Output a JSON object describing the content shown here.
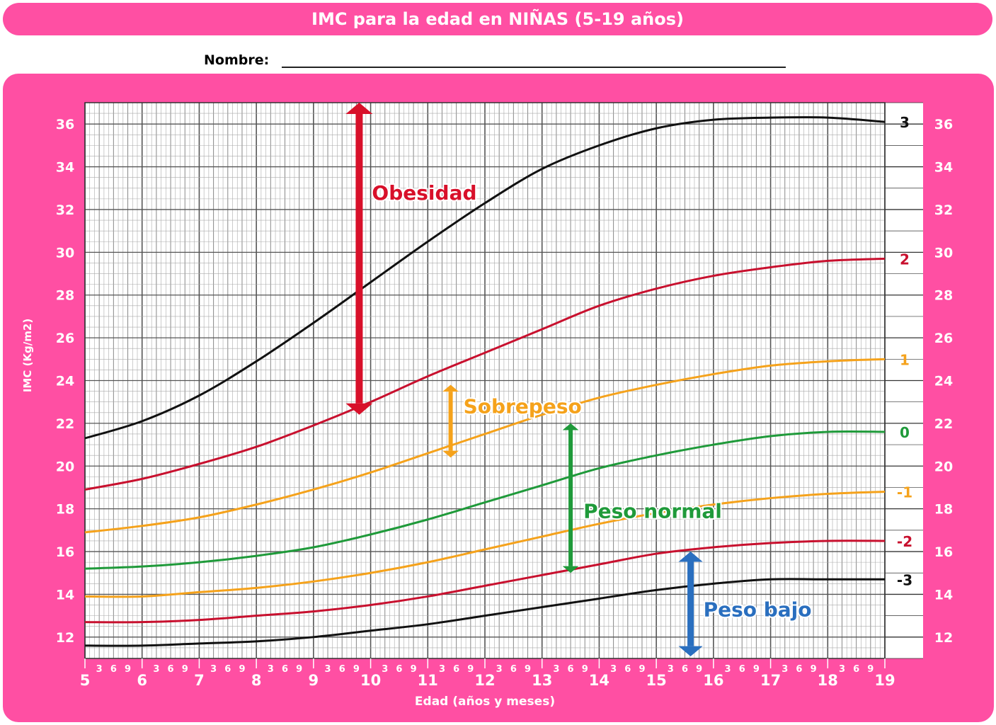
{
  "header": {
    "title": "IMC para la edad en NIÑAS (5-19 años)",
    "name_label": "Nombre:"
  },
  "colors": {
    "background_panel": "#ff4fa3",
    "sd_3": "#111111",
    "sd_2": "#c8102e",
    "sd_1": "#f5a21b",
    "sd_0": "#1f9a3a",
    "peso_bajo": "#2a6fbf"
  },
  "chart_data": {
    "type": "line",
    "title": "IMC para la edad en NIÑAS (5-19 años)",
    "xlabel": "Edad (años y meses)",
    "ylabel": "IMC (Kg/m2)",
    "xlim": [
      5,
      19
    ],
    "ylim": [
      11,
      37
    ],
    "x_ticks": [
      "5",
      "6",
      "7",
      "8",
      "9",
      "10",
      "11",
      "12",
      "13",
      "14",
      "15",
      "16",
      "17",
      "18",
      "19"
    ],
    "month_ticks": [
      "3",
      "6",
      "9"
    ],
    "y_ticks": [
      "12",
      "14",
      "16",
      "18",
      "20",
      "22",
      "24",
      "26",
      "28",
      "30",
      "32",
      "34",
      "36"
    ],
    "grid": true,
    "x": [
      5,
      6,
      7,
      8,
      9,
      10,
      11,
      12,
      13,
      14,
      15,
      16,
      17,
      18,
      19
    ],
    "series": [
      {
        "name": "3",
        "color": "#111111",
        "values": [
          21.3,
          22.1,
          23.3,
          24.9,
          26.7,
          28.6,
          30.5,
          32.3,
          33.9,
          35.0,
          35.8,
          36.2,
          36.3,
          36.3,
          36.1
        ]
      },
      {
        "name": "2",
        "color": "#c8102e",
        "values": [
          18.9,
          19.4,
          20.1,
          20.9,
          21.9,
          23.0,
          24.2,
          25.3,
          26.4,
          27.5,
          28.3,
          28.9,
          29.3,
          29.6,
          29.7
        ]
      },
      {
        "name": "1",
        "color": "#f5a21b",
        "values": [
          16.9,
          17.2,
          17.6,
          18.2,
          18.9,
          19.7,
          20.6,
          21.5,
          22.4,
          23.2,
          23.8,
          24.3,
          24.7,
          24.9,
          25.0
        ]
      },
      {
        "name": "0",
        "color": "#1f9a3a",
        "values": [
          15.2,
          15.3,
          15.5,
          15.8,
          16.2,
          16.8,
          17.5,
          18.3,
          19.1,
          19.9,
          20.5,
          21.0,
          21.4,
          21.6,
          21.6
        ]
      },
      {
        "name": "-1",
        "color": "#f5a21b",
        "values": [
          13.9,
          13.9,
          14.1,
          14.3,
          14.6,
          15.0,
          15.5,
          16.1,
          16.7,
          17.3,
          17.8,
          18.2,
          18.5,
          18.7,
          18.8
        ]
      },
      {
        "name": "-2",
        "color": "#c8102e",
        "values": [
          12.7,
          12.7,
          12.8,
          13.0,
          13.2,
          13.5,
          13.9,
          14.4,
          14.9,
          15.4,
          15.9,
          16.2,
          16.4,
          16.5,
          16.5
        ]
      },
      {
        "name": "-3",
        "color": "#111111",
        "values": [
          11.6,
          11.6,
          11.7,
          11.8,
          12.0,
          12.3,
          12.6,
          13.0,
          13.4,
          13.8,
          14.2,
          14.5,
          14.7,
          14.7,
          14.7
        ]
      }
    ],
    "annotations": [
      {
        "label": "Obesidad",
        "color": "#d8102a",
        "x": 9.8,
        "y_from": 22.4,
        "y_to": 37.0,
        "label_y": 32.8
      },
      {
        "label": "Sobrepeso",
        "color": "#f5a21b",
        "x": 11.4,
        "y_from": 20.4,
        "y_to": 23.8,
        "label_y": 22.8
      },
      {
        "label": "Peso normal",
        "color": "#1f9a3a",
        "x": 13.5,
        "y_from": 15.0,
        "y_to": 22.0,
        "label_y": 17.9
      },
      {
        "label": "Peso bajo",
        "color": "#2a6fbf",
        "x": 15.6,
        "y_from": 11.1,
        "y_to": 16.0,
        "label_y": 13.3
      }
    ]
  }
}
